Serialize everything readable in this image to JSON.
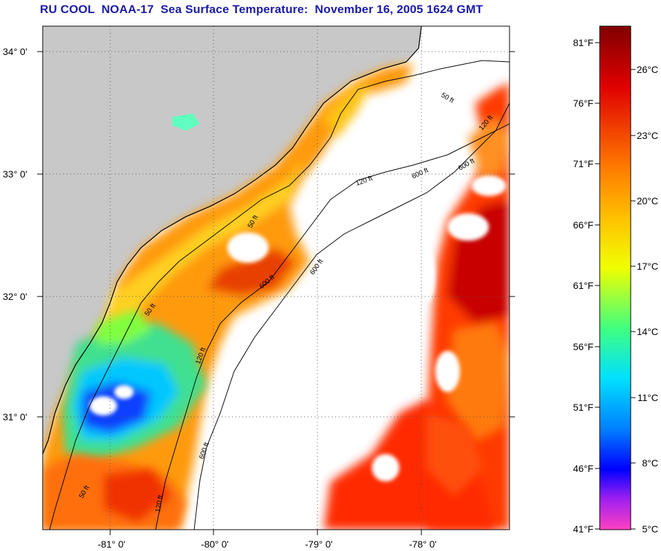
{
  "title": "RU COOL  NOAA-17  Sea Surface Temperature:  November 16, 2005 1624 GMT",
  "map": {
    "lat_ticks": [
      "34° 0'",
      "33° 0'",
      "32° 0'",
      "31° 0'"
    ],
    "lon_ticks": [
      "-81° 0'",
      "-80° 0'",
      "-79° 0'",
      "-78° 0'"
    ],
    "contour_labels": [
      "50 ft",
      "120 ft",
      "600 ft",
      "50 ft",
      "120 ft",
      "600 ft",
      "50 ft",
      "120 ft",
      "600 ft",
      "50 ft",
      "120 ft",
      "600 ft",
      "600 ft"
    ]
  },
  "colorbar": {
    "fahrenheit": [
      "81°F",
      "76°F",
      "71°F",
      "66°F",
      "61°F",
      "56°F",
      "51°F",
      "46°F",
      "41°F"
    ],
    "celsius": [
      "26°C",
      "23°C",
      "20°C",
      "17°C",
      "14°C",
      "11°C",
      "8°C",
      "5°C"
    ]
  },
  "colors": {
    "land": "#c8c8c8",
    "no_data": "#ffffff",
    "title": "#1a1aa6",
    "gridline": "#555555"
  }
}
